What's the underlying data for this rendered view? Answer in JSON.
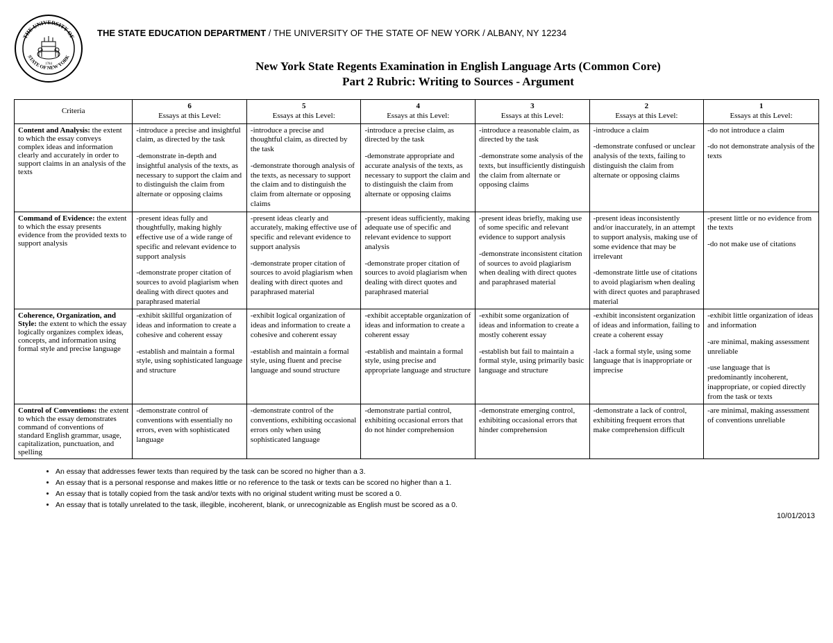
{
  "header": {
    "dept_bold": "THE STATE EDUCATION DEPARTMENT",
    "dept_rest": " / THE UNIVERSITY OF THE STATE OF NEW YORK / ALBANY, NY 12234",
    "title1": "New York State Regents Examination in English Language Arts (Common Core)",
    "title2": "Part 2 Rubric: Writing to Sources - Argument"
  },
  "columns": {
    "criteria_label": "Criteria",
    "score_labels": [
      "6",
      "5",
      "4",
      "3",
      "2",
      "1"
    ],
    "essays_label": "Essays at this Level:"
  },
  "rows": [
    {
      "criteria_bold": "Content and Analysis:",
      "criteria_rest": " the extent to which the essay conveys complex ideas and information clearly and accurately in order to support claims in an analysis of the texts",
      "cells": [
        [
          "-introduce a precise and insightful claim, as directed by the task",
          "-demonstrate in-depth and insightful analysis of the texts, as necessary to support the claim and to distinguish the claim from alternate or opposing claims"
        ],
        [
          "-introduce a precise and thoughtful claim, as directed by the task",
          "-demonstrate thorough analysis of the texts, as necessary to support the claim and to distinguish the claim from alternate or opposing claims"
        ],
        [
          "-introduce a precise claim, as directed by the task",
          "-demonstrate appropriate and accurate analysis of the texts, as necessary to support the claim and to distinguish the claim from alternate or opposing claims"
        ],
        [
          "-introduce a reasonable claim, as directed by the task",
          "-demonstrate some analysis of the texts, but insufficiently distinguish the claim from alternate or opposing claims"
        ],
        [
          "-introduce a claim",
          "-demonstrate confused or unclear analysis of the texts, failing to distinguish the claim from alternate or opposing claims"
        ],
        [
          "-do not introduce a claim",
          "-do not demonstrate analysis of the texts"
        ]
      ]
    },
    {
      "criteria_bold": "Command of Evidence:",
      "criteria_rest": " the extent to which the essay presents evidence from the provided texts to support analysis",
      "cells": [
        [
          "-present ideas fully and thoughtfully, making highly effective use of a wide range of specific and relevant evidence to support analysis",
          "-demonstrate proper citation of sources to avoid plagiarism when dealing with direct quotes and paraphrased material"
        ],
        [
          "-present ideas clearly and accurately, making effective use of specific and relevant evidence to support analysis",
          "-demonstrate proper citation of sources to avoid plagiarism when dealing with direct quotes and paraphrased material"
        ],
        [
          "-present ideas sufficiently, making adequate use of specific and relevant evidence to support analysis",
          "-demonstrate proper citation of sources to avoid plagiarism when dealing with direct quotes and paraphrased material"
        ],
        [
          "-present ideas briefly, making use of some specific and relevant evidence to support analysis",
          "-demonstrate inconsistent citation of sources to avoid plagiarism when dealing with direct quotes and paraphrased material"
        ],
        [
          "-present ideas inconsistently and/or inaccurately, in an attempt to support analysis, making use of some evidence that may be irrelevant",
          "-demonstrate little use of citations to avoid plagiarism when dealing with direct quotes and paraphrased material"
        ],
        [
          "-present little or no evidence from the texts",
          "-do not make use of citations"
        ]
      ]
    },
    {
      "criteria_bold": "Coherence, Organization, and Style:",
      "criteria_rest": " the extent to which the essay logically organizes complex ideas, concepts, and information using formal style and precise language",
      "cells": [
        [
          "-exhibit skillful organization of ideas and information to create a cohesive and coherent essay",
          "-establish and maintain a formal style, using sophisticated language and structure"
        ],
        [
          "-exhibit logical organization of ideas and information to create a cohesive and coherent essay",
          "-establish and maintain a formal style, using fluent and precise language and sound structure"
        ],
        [
          "-exhibit acceptable organization of ideas and information to create a coherent essay",
          "-establish and maintain a formal style, using precise and appropriate language and structure"
        ],
        [
          "-exhibit some organization of ideas and information to create a mostly coherent essay",
          "-establish but fail to maintain a formal style, using primarily basic language and structure"
        ],
        [
          "-exhibit inconsistent organization of ideas and information, failing to create a coherent essay",
          "-lack a formal style, using some language that is inappropriate or imprecise"
        ],
        [
          "-exhibit little organization of ideas and information",
          "-are minimal, making assessment unreliable",
          "-use language that is predominantly incoherent, inappropriate, or copied directly from the task or texts"
        ]
      ]
    },
    {
      "criteria_bold": "Control of Conventions:",
      "criteria_rest": " the extent to which the essay demonstrates command of conventions of standard English grammar, usage, capitalization, punctuation, and spelling",
      "cells": [
        [
          "-demonstrate control of conventions with essentially no errors, even with sophisticated language"
        ],
        [
          "-demonstrate control of the conventions, exhibiting occasional errors only when using sophisticated language"
        ],
        [
          "-demonstrate partial control, exhibiting occasional errors that do not hinder comprehension"
        ],
        [
          "-demonstrate emerging control, exhibiting occasional errors that hinder comprehension"
        ],
        [
          "-demonstrate a lack of control, exhibiting frequent errors that make comprehension difficult"
        ],
        [
          "-are minimal, making assessment of conventions unreliable"
        ]
      ]
    }
  ],
  "notes": [
    "An essay that addresses fewer texts than required by the task can be scored no higher than a 3.",
    "An essay that is a personal response and makes little or no reference to the task or texts can be scored no higher than a 1.",
    "An essay that is totally copied from the task and/or texts with no original student writing must be scored a 0.",
    "An essay that is totally unrelated to the task, illegible, incoherent, blank, or unrecognizable as English must be scored as a 0."
  ],
  "date": "10/01/2013"
}
